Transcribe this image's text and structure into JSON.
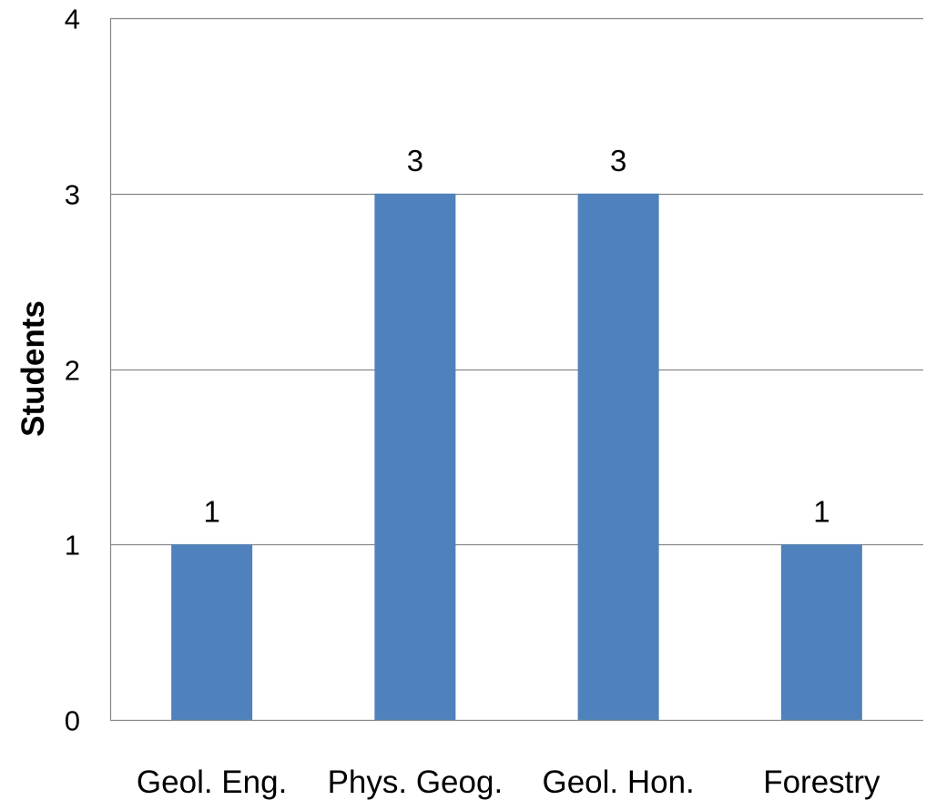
{
  "chart_data": {
    "type": "bar",
    "categories": [
      "Geol. Eng.",
      "Phys. Geog.",
      "Geol. Hon.",
      "Forestry"
    ],
    "values": [
      1,
      3,
      3,
      1
    ],
    "data_labels": [
      "1",
      "3",
      "3",
      "1"
    ],
    "title": "",
    "xlabel": "",
    "ylabel": "Students",
    "ylim": [
      0,
      4
    ],
    "yticks": [
      0,
      1,
      2,
      3,
      4
    ],
    "ytick_labels": [
      "0",
      "1",
      "2",
      "3",
      "4"
    ],
    "grid": "horizontal",
    "legend": "none",
    "bar_color": "#4f81bd",
    "grid_color": "#868686"
  }
}
